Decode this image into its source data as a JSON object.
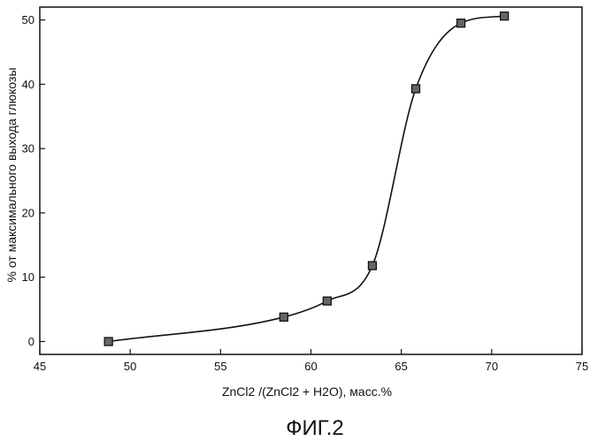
{
  "chart_data": {
    "type": "line",
    "title": "",
    "xlabel": "ZnCl2 /(ZnCl2 + H2O), масс.%",
    "ylabel": "% от максимального выхода глюкозы",
    "xlim": [
      45,
      75
    ],
    "ylim": [
      -2,
      52
    ],
    "xticks": [
      45,
      50,
      55,
      60,
      65,
      70,
      75
    ],
    "yticks": [
      0,
      10,
      20,
      30,
      40,
      50
    ],
    "grid": false,
    "marker": "square",
    "series": [
      {
        "x": [
          48.8,
          58.5,
          60.9,
          63.4,
          65.8,
          68.3,
          70.7
        ],
        "y": [
          0,
          3.8,
          6.3,
          11.8,
          39.3,
          49.5,
          50.6
        ]
      }
    ],
    "caption": "ФИГ.2",
    "colors": {
      "line": "#111111",
      "marker_fill": "#666666",
      "marker_edge": "#111111"
    }
  }
}
